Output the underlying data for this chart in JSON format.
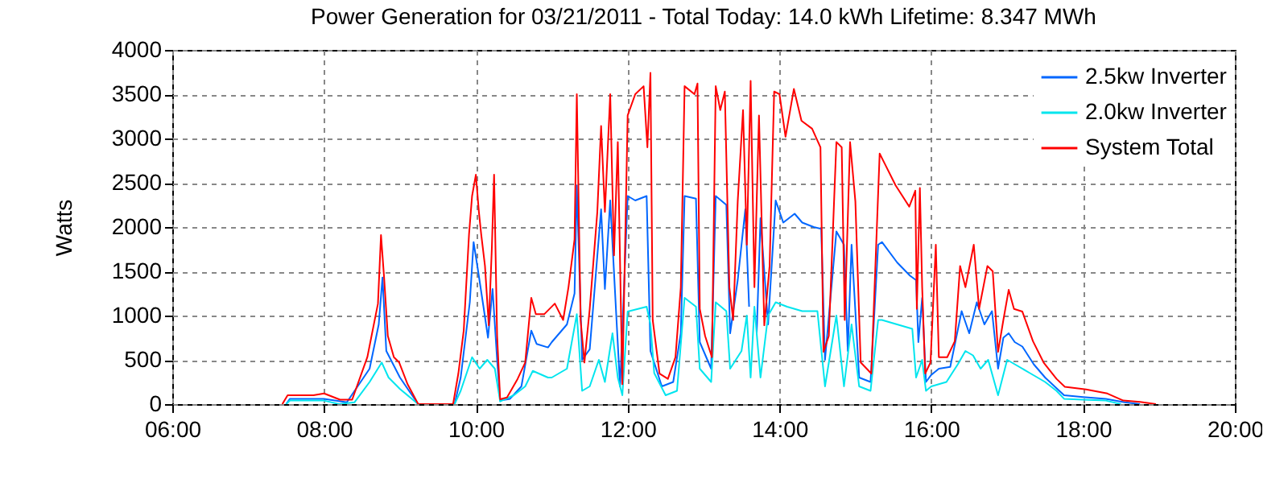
{
  "chart_data": {
    "type": "line",
    "title": "Power Generation for 03/21/2011 - Total Today: 14.0 kWh   Lifetime: 8.347 MWh",
    "ylabel": "Watts",
    "xlim": [
      6,
      20
    ],
    "xticks": [
      {
        "value": 6,
        "label": "06:00"
      },
      {
        "value": 8,
        "label": "08:00"
      },
      {
        "value": 10,
        "label": "10:00"
      },
      {
        "value": 12,
        "label": "12:00"
      },
      {
        "value": 14,
        "label": "14:00"
      },
      {
        "value": 16,
        "label": "16:00"
      },
      {
        "value": 18,
        "label": "18:00"
      },
      {
        "value": 20,
        "label": "20:00"
      }
    ],
    "ylim": [
      0,
      4000
    ],
    "yticks": [
      0,
      500,
      1000,
      1500,
      2000,
      2500,
      3000,
      3500,
      4000
    ],
    "grid": true,
    "legend": "top right",
    "series": [
      {
        "name": "2.5kw Inverter",
        "color": "#0066ff",
        "x": [
          7.5,
          7.55,
          8.0,
          8.3,
          8.6,
          8.72,
          8.77,
          8.82,
          9.0,
          9.24,
          9.72,
          9.8,
          9.92,
          9.97,
          10.03,
          10.1,
          10.16,
          10.22,
          10.28,
          10.32,
          10.45,
          10.6,
          10.73,
          10.8,
          10.95,
          11.0,
          11.2,
          11.3,
          11.33,
          11.4,
          11.5,
          11.65,
          11.7,
          11.77,
          11.85,
          11.9,
          12.0,
          12.1,
          12.25,
          12.3,
          12.45,
          12.6,
          12.7,
          12.75,
          12.9,
          12.95,
          13.1,
          13.16,
          13.3,
          13.35,
          13.45,
          13.55,
          13.6,
          13.65,
          13.7,
          13.75,
          13.85,
          13.95,
          14.05,
          14.2,
          14.3,
          14.45,
          14.55,
          14.6,
          14.75,
          14.85,
          14.9,
          14.95,
          15.05,
          15.2,
          15.3,
          15.35,
          15.55,
          15.72,
          15.8,
          15.83,
          15.88,
          15.93,
          16.0,
          16.1,
          16.25,
          16.4,
          16.5,
          16.6,
          16.7,
          16.8,
          16.88,
          16.95,
          17.02,
          17.1,
          17.2,
          17.35,
          17.5,
          17.65,
          17.75,
          18.0,
          18.3,
          18.55,
          18.75
        ],
        "values": [
          0,
          60,
          60,
          20,
          400,
          900,
          1430,
          600,
          300,
          0,
          0,
          300,
          1150,
          1830,
          1500,
          1100,
          750,
          1300,
          500,
          40,
          60,
          200,
          830,
          680,
          640,
          700,
          900,
          1250,
          2470,
          500,
          620,
          2200,
          1300,
          2300,
          1000,
          200,
          2350,
          2300,
          2350,
          600,
          200,
          250,
          800,
          2350,
          2320,
          700,
          400,
          2350,
          2250,
          800,
          1400,
          2200,
          1100,
          null,
          800,
          2100,
          900,
          2300,
          2050,
          2150,
          2050,
          2000,
          1980,
          500,
          1950,
          1800,
          600,
          1800,
          300,
          250,
          1800,
          1830,
          1600,
          1450,
          1400,
          700,
          1200,
          250,
          330,
          400,
          420,
          1050,
          800,
          1150,
          900,
          1050,
          400,
          750,
          800,
          700,
          650,
          450,
          300,
          180,
          100,
          80,
          60,
          20,
          0
        ]
      },
      {
        "name": "2.0kw Inverter",
        "color": "#00e5ee",
        "x": [
          7.5,
          7.55,
          8.0,
          8.2,
          8.4,
          8.6,
          8.76,
          8.85,
          9.0,
          9.24,
          9.72,
          9.8,
          9.95,
          10.05,
          10.15,
          10.25,
          10.32,
          10.5,
          10.65,
          10.75,
          10.95,
          11.0,
          11.2,
          11.33,
          11.4,
          11.5,
          11.62,
          11.7,
          11.8,
          11.87,
          11.93,
          12.0,
          12.25,
          12.3,
          12.35,
          12.5,
          12.65,
          12.75,
          12.9,
          12.95,
          13.1,
          13.16,
          13.3,
          13.35,
          13.5,
          13.57,
          13.62,
          13.67,
          13.75,
          13.85,
          13.95,
          14.1,
          14.3,
          14.5,
          14.6,
          14.75,
          14.85,
          14.95,
          15.05,
          15.2,
          15.3,
          15.35,
          15.55,
          15.75,
          15.8,
          15.88,
          15.93,
          16.0,
          16.2,
          16.35,
          16.45,
          16.55,
          16.65,
          16.75,
          16.88,
          17.0,
          17.1,
          17.3,
          17.5,
          17.65,
          17.75,
          18.0,
          18.3,
          18.5
        ],
        "values": [
          0,
          40,
          40,
          0,
          20,
          250,
          470,
          300,
          170,
          0,
          0,
          150,
          530,
          400,
          500,
          400,
          30,
          100,
          200,
          375,
          300,
          300,
          400,
          1015,
          150,
          200,
          500,
          250,
          800,
          300,
          100,
          1045,
          1100,
          900,
          350,
          100,
          150,
          1200,
          1100,
          400,
          250,
          1150,
          1050,
          400,
          600,
          1000,
          300,
          1100,
          300,
          1000,
          1150,
          1100,
          1050,
          1050,
          200,
          1000,
          200,
          900,
          200,
          150,
          950,
          950,
          900,
          850,
          300,
          500,
          150,
          200,
          250,
          450,
          600,
          550,
          400,
          500,
          100,
          500,
          450,
          350,
          250,
          150,
          60,
          50,
          40,
          0
        ]
      },
      {
        "name": "System Total",
        "color": "#ff0000",
        "x": [
          7.45,
          7.52,
          7.86,
          8.0,
          8.21,
          8.37,
          8.57,
          8.71,
          8.75,
          8.79,
          8.84,
          8.92,
          8.99,
          9.1,
          9.24,
          9.7,
          9.77,
          9.84,
          9.91,
          9.95,
          10.0,
          10.04,
          10.07,
          10.12,
          10.17,
          10.21,
          10.24,
          10.28,
          10.32,
          10.41,
          10.55,
          10.65,
          10.73,
          10.79,
          10.9,
          11.04,
          11.15,
          11.22,
          11.3,
          11.33,
          11.38,
          11.43,
          11.5,
          11.6,
          11.65,
          11.7,
          11.77,
          11.82,
          11.87,
          11.93,
          12.0,
          12.1,
          12.21,
          12.26,
          12.3,
          12.33,
          12.42,
          12.53,
          12.63,
          12.7,
          12.75,
          12.88,
          12.92,
          12.95,
          13.02,
          13.11,
          13.16,
          13.22,
          13.28,
          13.34,
          13.39,
          13.45,
          13.52,
          13.57,
          13.62,
          13.67,
          13.73,
          13.8,
          13.87,
          13.93,
          14.0,
          14.08,
          14.19,
          14.29,
          14.43,
          14.54,
          14.58,
          14.65,
          14.75,
          14.82,
          14.86,
          14.93,
          15.0,
          15.07,
          15.21,
          15.32,
          15.39,
          15.53,
          15.71,
          15.79,
          15.81,
          15.85,
          15.88,
          15.92,
          15.99,
          16.06,
          16.1,
          16.21,
          16.31,
          16.38,
          16.45,
          16.56,
          16.63,
          16.74,
          16.81,
          16.88,
          16.95,
          17.02,
          17.09,
          17.2,
          17.34,
          17.48,
          17.65,
          17.76,
          18.04,
          18.32,
          18.53,
          18.75,
          18.96
        ],
        "values": [
          0,
          100,
          100,
          120,
          50,
          50,
          530,
          1135,
          1910,
          1440,
          770,
          530,
          470,
          225,
          0,
          0,
          350,
          830,
          1920,
          2350,
          2590,
          2170,
          1920,
          1560,
          890,
          1750,
          2590,
          770,
          55,
          75,
          285,
          470,
          1200,
          1015,
          1015,
          1135,
          950,
          1320,
          1860,
          3500,
          950,
          470,
          1075,
          2170,
          3140,
          2170,
          3500,
          1680,
          2960,
          225,
          3260,
          3500,
          3590,
          2900,
          3740,
          950,
          345,
          285,
          530,
          1320,
          3590,
          3500,
          3620,
          1075,
          770,
          530,
          3590,
          3320,
          3530,
          1320,
          950,
          2290,
          3320,
          1800,
          3650,
          1320,
          3260,
          890,
          1560,
          3530,
          3500,
          3020,
          3560,
          3200,
          3110,
          2900,
          590,
          770,
          2960,
          2900,
          950,
          2960,
          2290,
          470,
          345,
          2830,
          2710,
          2470,
          2230,
          2410,
          1075,
          2440,
          1320,
          345,
          470,
          1800,
          530,
          530,
          710,
          1560,
          1320,
          1800,
          1075,
          1560,
          1500,
          590,
          950,
          1290,
          1075,
          1045,
          710,
          470,
          285,
          195,
          165,
          120,
          40,
          25,
          0
        ]
      }
    ]
  }
}
